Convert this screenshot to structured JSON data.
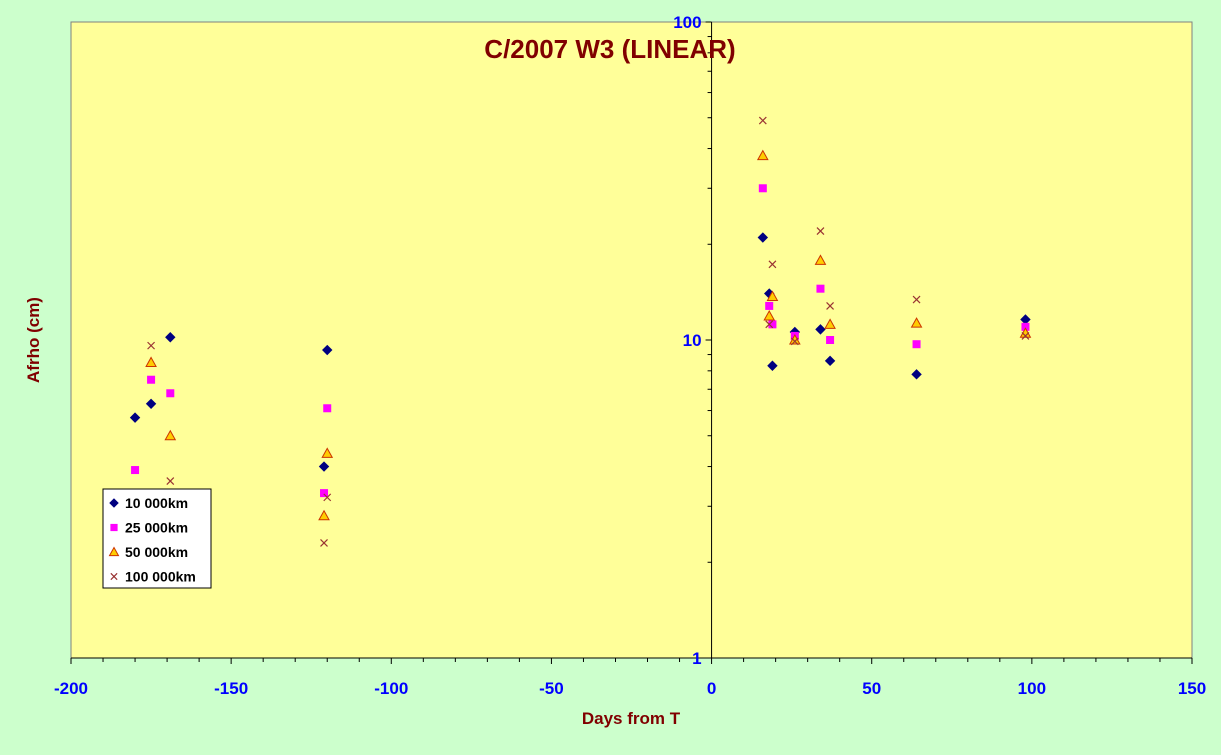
{
  "chart_data": {
    "type": "scatter",
    "title": "C/2007 W3 (LINEAR)",
    "xlabel": "Days from T",
    "ylabel": "Afrho (cm)",
    "xlim": [
      -200,
      150
    ],
    "ylim": [
      1,
      100
    ],
    "yscale": "log",
    "x_ticks": [
      -200,
      -150,
      -100,
      -50,
      0,
      50,
      100,
      150
    ],
    "y_ticks": [
      1,
      10,
      100
    ],
    "y_tick_labels": [
      "1",
      "10",
      "100"
    ],
    "grid": false,
    "legend_position": "bottom-left",
    "plot_background": "#ffff99",
    "figure_background": "#ccffcc",
    "series": [
      {
        "name": "10 000km",
        "marker": "diamond",
        "color": "#000080",
        "points": [
          [
            -180,
            5.7
          ],
          [
            -175,
            6.3
          ],
          [
            -169,
            10.2
          ],
          [
            -121,
            4.0
          ],
          [
            -120,
            9.3
          ],
          [
            16,
            21
          ],
          [
            18,
            14
          ],
          [
            19,
            8.3
          ],
          [
            26,
            10.6
          ],
          [
            34,
            10.8
          ],
          [
            37,
            8.6
          ],
          [
            64,
            7.8
          ],
          [
            98,
            11.6
          ]
        ]
      },
      {
        "name": "25 000km",
        "marker": "square",
        "color": "#ff00ff",
        "points": [
          [
            -180,
            3.9
          ],
          [
            -175,
            7.5
          ],
          [
            -169,
            6.8
          ],
          [
            -121,
            3.3
          ],
          [
            -120,
            6.1
          ],
          [
            16,
            30
          ],
          [
            18,
            12.8
          ],
          [
            19,
            11.2
          ],
          [
            26,
            10.3
          ],
          [
            34,
            14.5
          ],
          [
            37,
            10.0
          ],
          [
            64,
            9.7
          ],
          [
            98,
            11.0
          ]
        ]
      },
      {
        "name": "50 000km",
        "marker": "triangle",
        "color": "#ffcc00",
        "stroke": "#cc3300",
        "points": [
          [
            -175,
            8.5
          ],
          [
            -169,
            5.0
          ],
          [
            -121,
            2.8
          ],
          [
            -120,
            4.4
          ],
          [
            16,
            38
          ],
          [
            18,
            11.9
          ],
          [
            19,
            13.7
          ],
          [
            26,
            10.0
          ],
          [
            34,
            17.8
          ],
          [
            37,
            11.2
          ],
          [
            64,
            11.3
          ],
          [
            98,
            10.5
          ]
        ]
      },
      {
        "name": "100 000km",
        "marker": "x",
        "color": "#993333",
        "points": [
          [
            -175,
            9.6
          ],
          [
            -169,
            3.6
          ],
          [
            -121,
            2.3
          ],
          [
            -120,
            3.2
          ],
          [
            16,
            49
          ],
          [
            18,
            11.2
          ],
          [
            19,
            17.3
          ],
          [
            26,
            9.9
          ],
          [
            34,
            22
          ],
          [
            37,
            12.8
          ],
          [
            64,
            13.4
          ],
          [
            98,
            10.3
          ]
        ]
      }
    ]
  }
}
